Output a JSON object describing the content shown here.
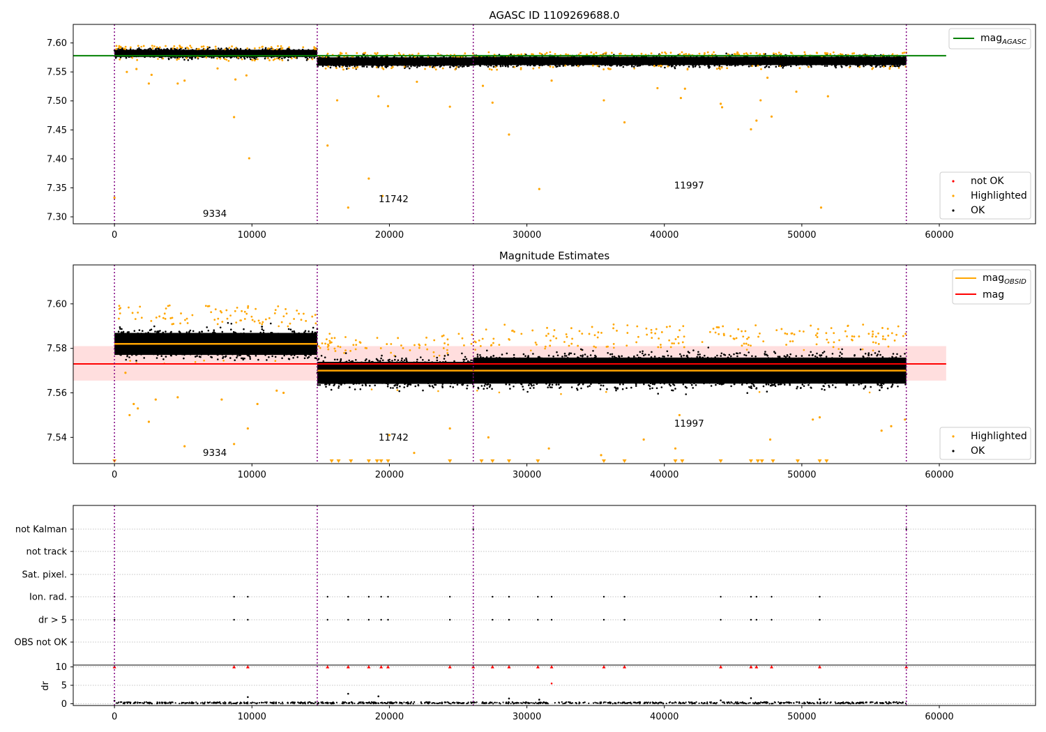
{
  "chart_data": [
    {
      "type": "scatter",
      "title": "AGASC ID 1109269688.0",
      "xlim": [
        -3000,
        67000
      ],
      "ylim": [
        7.288,
        7.632
      ],
      "xticks": [
        0,
        10000,
        20000,
        30000,
        40000,
        50000,
        60000
      ],
      "yticks": [
        7.3,
        7.35,
        7.4,
        7.45,
        7.5,
        7.55,
        7.6
      ],
      "vlines": [
        0,
        14750,
        26100,
        57600
      ],
      "hline": {
        "label": "mag_AGASC",
        "value": 7.578,
        "color": "#008000"
      },
      "legend_line": {
        "main": "mag",
        "sub": "AGASC"
      },
      "legend": [
        "not OK",
        "Highlighted",
        "OK"
      ],
      "legend_position": "lower-right",
      "annotations": [
        {
          "text": "9334",
          "x": 7300,
          "y": 7.3
        },
        {
          "text": "11742",
          "x": 20300,
          "y": 7.325
        },
        {
          "text": "11997",
          "x": 41800,
          "y": 7.349
        }
      ],
      "segments": [
        {
          "obsid": "9334",
          "x0": 0,
          "x1": 14750,
          "center": 7.582,
          "spread": 0.007
        },
        {
          "obsid": "11742",
          "x0": 14750,
          "x1": 26100,
          "center": 7.568,
          "spread": 0.008
        },
        {
          "obsid": "11997",
          "x0": 26100,
          "x1": 57600,
          "center": 7.569,
          "spread": 0.008
        }
      ],
      "outliers": [
        [
          0,
          7.333
        ],
        [
          900,
          7.55
        ],
        [
          1600,
          7.555
        ],
        [
          2500,
          7.53
        ],
        [
          2700,
          7.545
        ],
        [
          4600,
          7.53
        ],
        [
          5100,
          7.535
        ],
        [
          7500,
          7.556
        ],
        [
          8700,
          7.472
        ],
        [
          8800,
          7.537
        ],
        [
          9600,
          7.544
        ],
        [
          9800,
          7.401
        ],
        [
          10200,
          7.57
        ],
        [
          15500,
          7.423
        ],
        [
          16200,
          7.501
        ],
        [
          17000,
          7.316
        ],
        [
          18500,
          7.366
        ],
        [
          19200,
          7.508
        ],
        [
          19500,
          7.336
        ],
        [
          19900,
          7.491
        ],
        [
          22000,
          7.533
        ],
        [
          24400,
          7.49
        ],
        [
          26800,
          7.526
        ],
        [
          27500,
          7.497
        ],
        [
          28700,
          7.442
        ],
        [
          30900,
          7.348
        ],
        [
          31800,
          7.535
        ],
        [
          35600,
          7.501
        ],
        [
          37100,
          7.463
        ],
        [
          39500,
          7.522
        ],
        [
          41200,
          7.505
        ],
        [
          41500,
          7.521
        ],
        [
          44100,
          7.495
        ],
        [
          44200,
          7.489
        ],
        [
          46300,
          7.451
        ],
        [
          46700,
          7.466
        ],
        [
          47000,
          7.501
        ],
        [
          47500,
          7.54
        ],
        [
          47800,
          7.473
        ],
        [
          49600,
          7.516
        ],
        [
          51400,
          7.316
        ],
        [
          51900,
          7.508
        ]
      ]
    },
    {
      "type": "scatter",
      "title": "Magnitude Estimates",
      "xlim": [
        -3000,
        67000
      ],
      "ylim": [
        7.5282,
        7.6175
      ],
      "xticks": [
        0,
        10000,
        20000,
        30000,
        40000,
        50000,
        60000
      ],
      "yticks": [
        7.54,
        7.56,
        7.58,
        7.6
      ],
      "vlines": [
        0,
        14750,
        26100,
        57600
      ],
      "mag": {
        "value": 7.573,
        "band": [
          7.5655,
          7.581
        ],
        "color": "#ff0000"
      },
      "mag_obsid": [
        {
          "x0": 0,
          "x1": 14750,
          "value": 7.582
        },
        {
          "x0": 14750,
          "x1": 57600,
          "value": 7.57
        }
      ],
      "legend_lines": [
        {
          "main": "mag",
          "sub": "OBSID",
          "color": "#ffa500"
        },
        {
          "main": "mag",
          "sub": "",
          "color": "#ff0000"
        }
      ],
      "legend": [
        "Highlighted",
        "OK"
      ],
      "legend_position": "lower-right",
      "annotations": [
        {
          "text": "9334",
          "x": 7300,
          "y": 7.5317
        },
        {
          "text": "11742",
          "x": 20300,
          "y": 7.5385
        },
        {
          "text": "11997",
          "x": 41800,
          "y": 7.5448
        }
      ],
      "segments": [
        {
          "obsid": "9334",
          "x0": 0,
          "x1": 14750,
          "center": 7.582,
          "spread": 0.0055
        },
        {
          "obsid": "11742",
          "x0": 14750,
          "x1": 26100,
          "center": 7.569,
          "spread": 0.0055
        },
        {
          "obsid": "11997",
          "x0": 26100,
          "x1": 57600,
          "center": 7.57,
          "spread": 0.0065
        }
      ],
      "outliers": [
        [
          800,
          7.569
        ],
        [
          1100,
          7.55
        ],
        [
          1400,
          7.555
        ],
        [
          1700,
          7.553
        ],
        [
          2500,
          7.547
        ],
        [
          3000,
          7.557
        ],
        [
          4600,
          7.558
        ],
        [
          5100,
          7.536
        ],
        [
          7800,
          7.557
        ],
        [
          8700,
          7.537
        ],
        [
          9700,
          7.544
        ],
        [
          10400,
          7.555
        ],
        [
          11800,
          7.561
        ],
        [
          12300,
          7.56
        ],
        [
          20000,
          7.541
        ],
        [
          21800,
          7.533
        ],
        [
          24400,
          7.544
        ],
        [
          27200,
          7.54
        ],
        [
          31600,
          7.535
        ],
        [
          35400,
          7.532
        ],
        [
          38500,
          7.539
        ],
        [
          40800,
          7.535
        ],
        [
          41100,
          7.55
        ],
        [
          47700,
          7.539
        ],
        [
          50800,
          7.548
        ],
        [
          51300,
          7.549
        ],
        [
          55800,
          7.543
        ],
        [
          56500,
          7.545
        ],
        [
          57500,
          7.548
        ]
      ],
      "offscale_markers": [
        0,
        15800,
        16300,
        17200,
        18500,
        19100,
        19400,
        19900,
        24400,
        26700,
        27500,
        28700,
        30800,
        35600,
        37100,
        40800,
        41300,
        44100,
        46300,
        46800,
        47100,
        47900,
        49700,
        51300,
        51800
      ]
    },
    {
      "type": "scatter",
      "xlim": [
        -3000,
        67000
      ],
      "xticks": [
        0,
        10000,
        20000,
        30000,
        40000,
        50000,
        60000
      ],
      "vlines": [
        0,
        14750,
        26100,
        57600
      ],
      "flag_rows": [
        "not Kalman",
        "not track",
        "Sat. pixel.",
        "Ion. rad.",
        "dr > 5",
        "OBS not OK"
      ],
      "flag_points": {
        "not Kalman": [
          26100,
          57600
        ],
        "not track": [],
        "Sat. pixel.": [],
        "Ion. rad.": [
          0,
          8700,
          9700,
          15500,
          17000,
          18500,
          19400,
          19900,
          24400,
          27500,
          28700,
          30800,
          31800,
          35600,
          37100,
          44100,
          46300,
          46700,
          47800,
          51300
        ],
        "dr > 5": [
          0,
          8700,
          9700,
          15500,
          17000,
          18500,
          19400,
          19900,
          24400,
          27500,
          28700,
          30800,
          31800,
          35600,
          37100,
          44100,
          46300,
          46700,
          47800,
          51300
        ],
        "OBS not OK": []
      },
      "dr": {
        "ylabel": "dr",
        "yticks": [
          0,
          5,
          10
        ],
        "ylim": [
          -0.5,
          10.5
        ],
        "clipped_at_10": [
          0,
          8700,
          9700,
          15500,
          17000,
          18500,
          19400,
          19900,
          24400,
          26100,
          27500,
          28700,
          30800,
          31800,
          35600,
          37100,
          44100,
          46300,
          46700,
          47800,
          51300,
          57600
        ],
        "points": [
          [
            9700,
            1.8
          ],
          [
            17000,
            2.7
          ],
          [
            19200,
            2.0
          ],
          [
            28700,
            1.4
          ],
          [
            30900,
            1.1
          ],
          [
            31800,
            5.5
          ],
          [
            44100,
            0.9
          ],
          [
            46300,
            1.5
          ],
          [
            51300,
            1.2
          ],
          [
            0,
            0.8
          ]
        ],
        "baseline_range": [
          0,
          0.45
        ]
      }
    }
  ]
}
